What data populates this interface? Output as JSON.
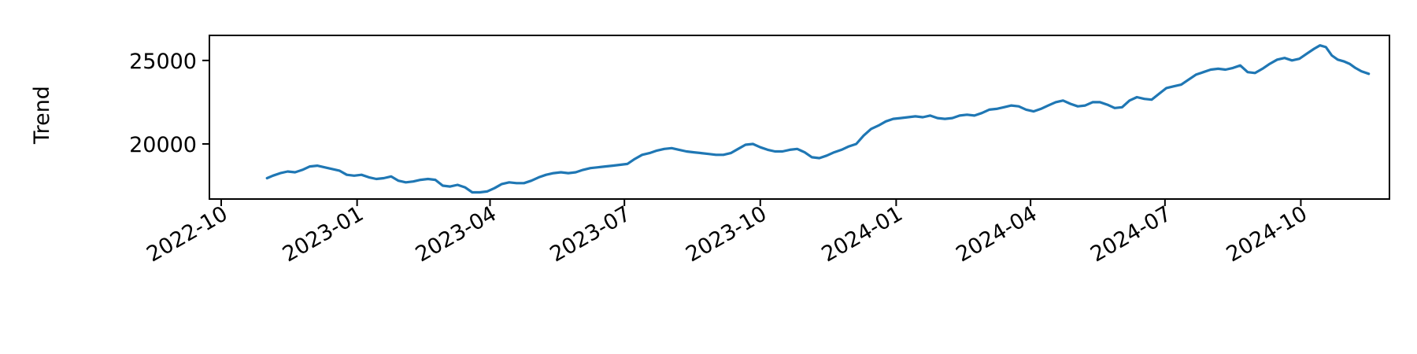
{
  "chart_data": {
    "type": "line",
    "title": "",
    "xlabel": "",
    "ylabel": "Trend",
    "grid": false,
    "legend": "none",
    "xlim": [
      "2022-09-23",
      "2024-11-30"
    ],
    "ylim": [
      16700,
      26500
    ],
    "x_ticks": [
      "2022-10",
      "2023-01",
      "2023-04",
      "2023-07",
      "2023-10",
      "2024-01",
      "2024-04",
      "2024-07",
      "2024-10"
    ],
    "y_ticks": [
      20000,
      25000
    ],
    "series": [
      {
        "color": "#1f77b4",
        "points": [
          [
            "2022-11-01",
            17950
          ],
          [
            "2022-11-05",
            18100
          ],
          [
            "2022-11-10",
            18250
          ],
          [
            "2022-11-15",
            18350
          ],
          [
            "2022-11-20",
            18300
          ],
          [
            "2022-11-25",
            18450
          ],
          [
            "2022-11-30",
            18650
          ],
          [
            "2022-12-05",
            18700
          ],
          [
            "2022-12-10",
            18600
          ],
          [
            "2022-12-15",
            18500
          ],
          [
            "2022-12-20",
            18400
          ],
          [
            "2022-12-25",
            18150
          ],
          [
            "2022-12-30",
            18100
          ],
          [
            "2023-01-04",
            18150
          ],
          [
            "2023-01-09",
            18000
          ],
          [
            "2023-01-14",
            17900
          ],
          [
            "2023-01-19",
            17950
          ],
          [
            "2023-01-24",
            18050
          ],
          [
            "2023-01-29",
            17800
          ],
          [
            "2023-02-03",
            17700
          ],
          [
            "2023-02-08",
            17750
          ],
          [
            "2023-02-13",
            17850
          ],
          [
            "2023-02-18",
            17900
          ],
          [
            "2023-02-23",
            17850
          ],
          [
            "2023-02-28",
            17500
          ],
          [
            "2023-03-05",
            17450
          ],
          [
            "2023-03-10",
            17550
          ],
          [
            "2023-03-15",
            17400
          ],
          [
            "2023-03-20",
            17100
          ],
          [
            "2023-03-25",
            17100
          ],
          [
            "2023-03-30",
            17150
          ],
          [
            "2023-04-04",
            17350
          ],
          [
            "2023-04-09",
            17600
          ],
          [
            "2023-04-14",
            17700
          ],
          [
            "2023-04-19",
            17650
          ],
          [
            "2023-04-24",
            17650
          ],
          [
            "2023-04-29",
            17800
          ],
          [
            "2023-05-04",
            18000
          ],
          [
            "2023-05-09",
            18150
          ],
          [
            "2023-05-14",
            18250
          ],
          [
            "2023-05-19",
            18300
          ],
          [
            "2023-05-24",
            18250
          ],
          [
            "2023-05-29",
            18300
          ],
          [
            "2023-06-03",
            18450
          ],
          [
            "2023-06-08",
            18550
          ],
          [
            "2023-06-13",
            18600
          ],
          [
            "2023-06-18",
            18650
          ],
          [
            "2023-06-23",
            18700
          ],
          [
            "2023-06-28",
            18750
          ],
          [
            "2023-07-03",
            18800
          ],
          [
            "2023-07-08",
            19100
          ],
          [
            "2023-07-13",
            19350
          ],
          [
            "2023-07-18",
            19450
          ],
          [
            "2023-07-23",
            19600
          ],
          [
            "2023-07-28",
            19700
          ],
          [
            "2023-08-02",
            19750
          ],
          [
            "2023-08-07",
            19650
          ],
          [
            "2023-08-12",
            19550
          ],
          [
            "2023-08-17",
            19500
          ],
          [
            "2023-08-22",
            19450
          ],
          [
            "2023-08-27",
            19400
          ],
          [
            "2023-09-01",
            19350
          ],
          [
            "2023-09-06",
            19350
          ],
          [
            "2023-09-11",
            19450
          ],
          [
            "2023-09-16",
            19700
          ],
          [
            "2023-09-21",
            19950
          ],
          [
            "2023-09-26",
            20000
          ],
          [
            "2023-10-01",
            19800
          ],
          [
            "2023-10-06",
            19650
          ],
          [
            "2023-10-11",
            19550
          ],
          [
            "2023-10-16",
            19550
          ],
          [
            "2023-10-21",
            19650
          ],
          [
            "2023-10-26",
            19700
          ],
          [
            "2023-10-31",
            19500
          ],
          [
            "2023-11-05",
            19200
          ],
          [
            "2023-11-10",
            19150
          ],
          [
            "2023-11-15",
            19300
          ],
          [
            "2023-11-20",
            19500
          ],
          [
            "2023-11-25",
            19650
          ],
          [
            "2023-11-30",
            19850
          ],
          [
            "2023-12-05",
            20000
          ],
          [
            "2023-12-10",
            20500
          ],
          [
            "2023-12-15",
            20900
          ],
          [
            "2023-12-20",
            21100
          ],
          [
            "2023-12-25",
            21350
          ],
          [
            "2023-12-30",
            21500
          ],
          [
            "2024-01-04",
            21550
          ],
          [
            "2024-01-09",
            21600
          ],
          [
            "2024-01-14",
            21650
          ],
          [
            "2024-01-19",
            21600
          ],
          [
            "2024-01-24",
            21700
          ],
          [
            "2024-01-29",
            21550
          ],
          [
            "2024-02-03",
            21500
          ],
          [
            "2024-02-08",
            21550
          ],
          [
            "2024-02-13",
            21700
          ],
          [
            "2024-02-18",
            21750
          ],
          [
            "2024-02-23",
            21700
          ],
          [
            "2024-02-28",
            21850
          ],
          [
            "2024-03-04",
            22050
          ],
          [
            "2024-03-09",
            22100
          ],
          [
            "2024-03-14",
            22200
          ],
          [
            "2024-03-19",
            22300
          ],
          [
            "2024-03-24",
            22250
          ],
          [
            "2024-03-29",
            22050
          ],
          [
            "2024-04-03",
            21950
          ],
          [
            "2024-04-08",
            22100
          ],
          [
            "2024-04-13",
            22300
          ],
          [
            "2024-04-18",
            22500
          ],
          [
            "2024-04-23",
            22600
          ],
          [
            "2024-04-28",
            22400
          ],
          [
            "2024-05-03",
            22250
          ],
          [
            "2024-05-08",
            22300
          ],
          [
            "2024-05-13",
            22500
          ],
          [
            "2024-05-18",
            22500
          ],
          [
            "2024-05-23",
            22350
          ],
          [
            "2024-05-28",
            22150
          ],
          [
            "2024-06-02",
            22200
          ],
          [
            "2024-06-07",
            22600
          ],
          [
            "2024-06-12",
            22800
          ],
          [
            "2024-06-17",
            22700
          ],
          [
            "2024-06-22",
            22650
          ],
          [
            "2024-06-27",
            23000
          ],
          [
            "2024-07-02",
            23350
          ],
          [
            "2024-07-07",
            23450
          ],
          [
            "2024-07-12",
            23550
          ],
          [
            "2024-07-17",
            23850
          ],
          [
            "2024-07-22",
            24150
          ],
          [
            "2024-07-27",
            24300
          ],
          [
            "2024-08-01",
            24450
          ],
          [
            "2024-08-06",
            24500
          ],
          [
            "2024-08-11",
            24450
          ],
          [
            "2024-08-16",
            24550
          ],
          [
            "2024-08-21",
            24700
          ],
          [
            "2024-08-26",
            24300
          ],
          [
            "2024-08-31",
            24250
          ],
          [
            "2024-09-05",
            24500
          ],
          [
            "2024-09-10",
            24800
          ],
          [
            "2024-09-15",
            25050
          ],
          [
            "2024-09-20",
            25150
          ],
          [
            "2024-09-25",
            25000
          ],
          [
            "2024-09-30",
            25100
          ],
          [
            "2024-10-05",
            25400
          ],
          [
            "2024-10-10",
            25700
          ],
          [
            "2024-10-14",
            25900
          ],
          [
            "2024-10-18",
            25800
          ],
          [
            "2024-10-22",
            25300
          ],
          [
            "2024-10-26",
            25050
          ],
          [
            "2024-10-30",
            24950
          ],
          [
            "2024-11-03",
            24800
          ],
          [
            "2024-11-07",
            24550
          ],
          [
            "2024-11-11",
            24350
          ],
          [
            "2024-11-16",
            24200
          ]
        ]
      }
    ]
  }
}
